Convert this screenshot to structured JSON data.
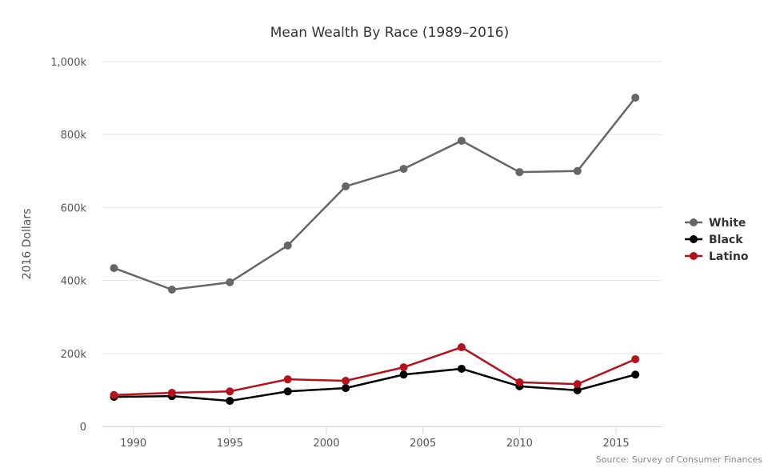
{
  "chart_data": {
    "type": "line",
    "title": "Mean Wealth By Race (1989–2016)",
    "xlabel": "",
    "ylabel": "2016 Dollars",
    "x": [
      1989,
      1992,
      1995,
      1998,
      2001,
      2004,
      2007,
      2010,
      2013,
      2016
    ],
    "xticks": [
      1990,
      1995,
      2000,
      2005,
      2010,
      2015
    ],
    "xtick_labels": [
      "1990",
      "1995",
      "2000",
      "2005",
      "2010",
      "2015"
    ],
    "xlim": [
      1988.4,
      2017.4
    ],
    "ylim": [
      0,
      1000000
    ],
    "yticks": [
      0,
      200000,
      400000,
      600000,
      800000,
      1000000
    ],
    "ytick_labels": [
      "0",
      "200k",
      "400k",
      "600k",
      "800k",
      "1,000k"
    ],
    "grid": "horizontal",
    "legend": "right",
    "series": [
      {
        "name": "White",
        "color": "#666666",
        "values": [
          434000,
          375000,
          395000,
          496000,
          658000,
          706000,
          783000,
          697000,
          700000,
          901000
        ]
      },
      {
        "name": "Black",
        "color": "#000000",
        "values": [
          81000,
          83000,
          70000,
          96000,
          105000,
          142000,
          158000,
          110000,
          99000,
          142000
        ]
      },
      {
        "name": "Latino",
        "color": "#b5121b",
        "values": [
          86000,
          92000,
          96000,
          129000,
          125000,
          162000,
          217000,
          121000,
          116000,
          184000
        ]
      }
    ],
    "credit": "Source: Survey of Consumer Finances"
  }
}
